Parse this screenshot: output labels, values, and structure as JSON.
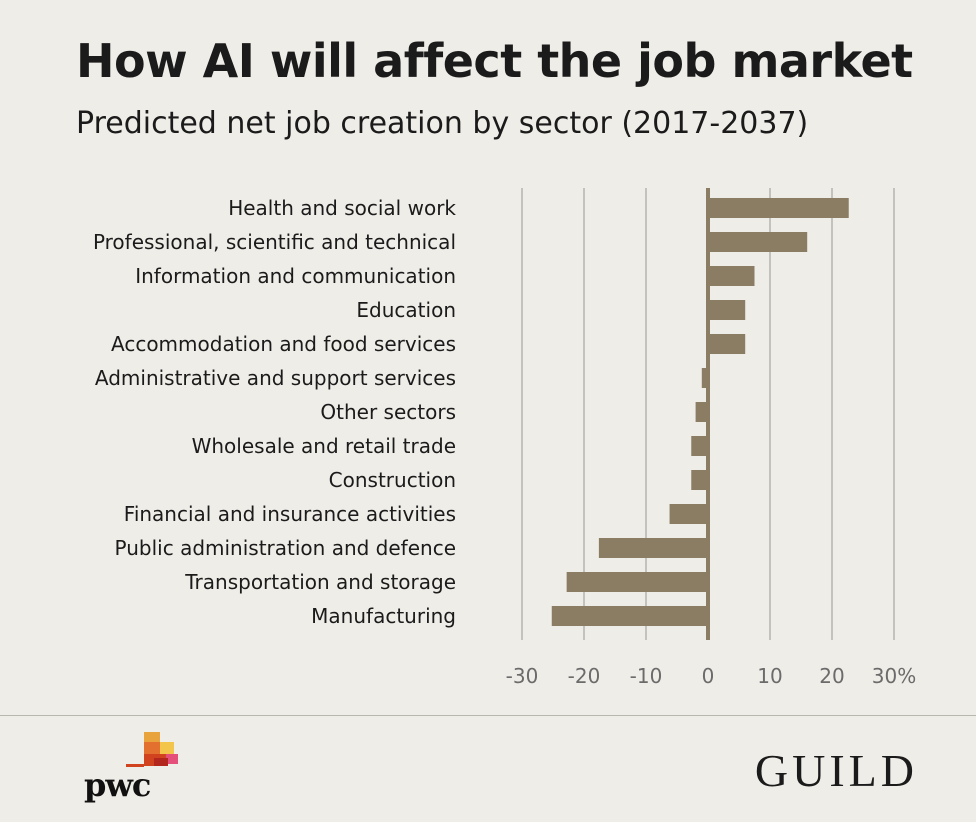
{
  "header": {
    "title": "How AI will affect the job market",
    "subtitle": "Predicted net job creation by sector (2017-2037)"
  },
  "chart_data": {
    "type": "bar",
    "orientation": "horizontal",
    "categories": [
      "Health and social work",
      "Professional, scientific and technical",
      "Information and communication",
      "Education",
      "Accommodation and food services",
      "Administrative and support services",
      "Other sectors",
      "Wholesale and retail trade",
      "Construction",
      "Financial and insurance activities",
      "Public administration and defence",
      "Transportation and storage",
      "Manufacturing"
    ],
    "values": [
      22.7,
      16,
      7.5,
      6,
      6,
      -1,
      -2,
      -2.7,
      -2.7,
      -6.2,
      -17.6,
      -22.8,
      -25.2
    ],
    "xlim": [
      -30,
      30
    ],
    "ticks": [
      -30,
      -20,
      -10,
      0,
      10,
      20,
      30
    ],
    "tick_labels": [
      "-30",
      "-20",
      "-10",
      "0",
      "10",
      "20",
      "30%"
    ],
    "grid": true,
    "bar_color": "#8b7d63"
  },
  "footer": {
    "pwc_logo": "pwc",
    "guild_logo": "GUILD"
  }
}
